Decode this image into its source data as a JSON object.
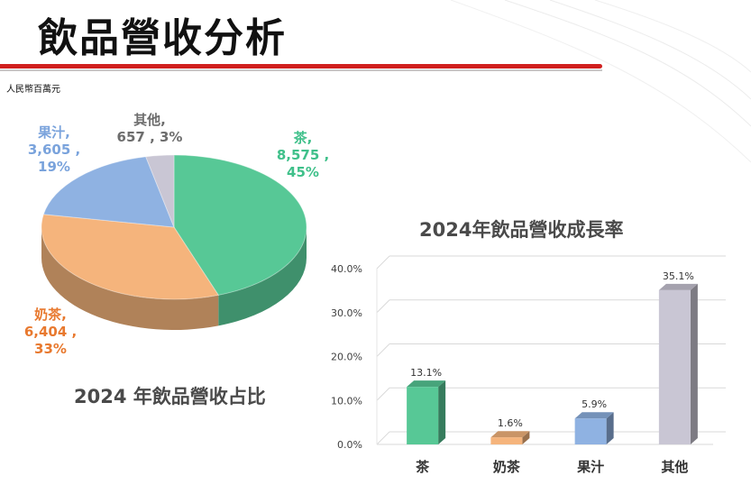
{
  "page": {
    "title": "飲品營收分析",
    "unit_note": "人民幣百萬元"
  },
  "colors": {
    "tea": "#57c896",
    "milk_tea": "#f5b47c",
    "juice": "#8fb2e2",
    "other": "#c9c6d4",
    "title_red": "#d0201f"
  },
  "chart_data": [
    {
      "type": "pie",
      "title": "2024 年飲品營收占比",
      "slices": [
        {
          "name": "茶",
          "value": 8575,
          "percent": 45,
          "name_label": "茶,",
          "value_label": "8,575 , 45%",
          "color": "#57c896",
          "text_color": "#3fc08a"
        },
        {
          "name": "奶茶",
          "value": 6404,
          "percent": 33,
          "name_label": "奶茶,",
          "value_label": "6,404 , 33%",
          "color": "#f5b47c",
          "text_color": "#e8792f"
        },
        {
          "name": "果汁",
          "value": 3605,
          "percent": 19,
          "name_label": "果汁,",
          "value_label": "3,605 , 19%",
          "color": "#8fb2e2",
          "text_color": "#7aa3dc"
        },
        {
          "name": "其他",
          "value": 657,
          "percent": 3,
          "name_label": "其他,",
          "value_label": "657 , 3%",
          "color": "#c9c6d4",
          "text_color": "#6d6d6d"
        }
      ]
    },
    {
      "type": "bar",
      "title": "2024年飲品營收成長率",
      "categories": [
        "茶",
        "奶茶",
        "果汁",
        "其他"
      ],
      "values": [
        13.1,
        1.6,
        5.9,
        35.1
      ],
      "value_labels": [
        "13.1%",
        "1.6%",
        "5.9%",
        "35.1%"
      ],
      "colors": [
        "#57c896",
        "#f5b47c",
        "#8fb2e2",
        "#c9c6d4"
      ],
      "ylim": [
        0,
        40
      ],
      "yticks": [
        "0.0%",
        "10.0%",
        "20.0%",
        "30.0%",
        "40.0%"
      ],
      "grid": true
    }
  ]
}
